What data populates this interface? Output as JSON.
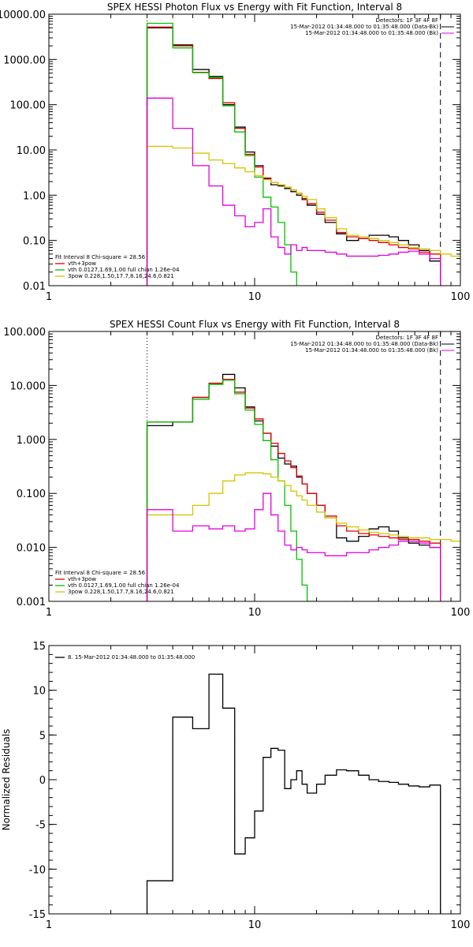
{
  "chart_data": [
    {
      "type": "line",
      "step": true,
      "title": "SPEX HESSI Photon Flux vs Energy with Fit Function, Interval 8",
      "xscale": "log",
      "yscale": "log",
      "xlim": [
        1,
        100
      ],
      "ylim": [
        0.01,
        10000
      ],
      "xticks": [
        {
          "v": 1,
          "label": "1"
        },
        {
          "v": 10,
          "label": "10"
        },
        {
          "v": 100,
          "label": "100"
        }
      ],
      "yticks": [
        {
          "v": 0.01,
          "label": "0.01"
        },
        {
          "v": 0.1,
          "label": "0.10"
        },
        {
          "v": 1,
          "label": "1.00"
        },
        {
          "v": 10,
          "label": "10.00"
        },
        {
          "v": 100,
          "label": "100.00"
        },
        {
          "v": 1000,
          "label": "1000.00"
        },
        {
          "v": 10000,
          "label": "10000.00"
        }
      ],
      "vlines": [
        {
          "x": 3,
          "style": "dotted"
        },
        {
          "x": 80,
          "style": "dashed"
        }
      ],
      "legend_right": [
        "Detectors: 1F 3F 4F 8F",
        "15-Mar-2012 01:34:48.000 to 01:35:48.000 (Data-Bk)",
        "15-Mar-2012 01:34:48.000 to 01:35:48.000 (Bk)"
      ],
      "legend_left": [
        "Fit Interval 8   Chi-square = 28.56",
        "vth+3pow",
        "vth 0.0127,1.69,1.00  full chian 1.26e-04",
        "3pow 0.228,1.50,17.7,8.16,24.6,0.821"
      ],
      "series": [
        {
          "key": "data",
          "color": "#000000",
          "edges": [
            3,
            4,
            5,
            6,
            7,
            8,
            9,
            10,
            11,
            12,
            13,
            14,
            15,
            16,
            17,
            18,
            20,
            22,
            25,
            28,
            32,
            36,
            40,
            45,
            50,
            56,
            63,
            71,
            80
          ],
          "values": [
            5000,
            2100,
            600,
            420,
            100,
            32,
            9,
            4.5,
            2.3,
            1.7,
            1.6,
            1.4,
            1.2,
            1.0,
            0.8,
            0.6,
            0.38,
            0.25,
            0.14,
            0.1,
            0.11,
            0.13,
            0.13,
            0.12,
            0.1,
            0.08,
            0.06,
            0.035
          ]
        },
        {
          "key": "fit",
          "color": "#e00000",
          "edges": [
            3,
            4,
            5,
            6,
            7,
            8,
            9,
            10,
            11,
            12,
            13,
            14,
            15,
            16,
            17,
            18,
            20,
            22,
            25,
            28,
            32,
            36,
            40,
            45,
            50,
            56,
            63,
            71,
            80
          ],
          "values": [
            5200,
            2000,
            520,
            380,
            110,
            30,
            8,
            4.2,
            2.4,
            1.9,
            1.7,
            1.5,
            1.3,
            1.1,
            0.85,
            0.65,
            0.42,
            0.28,
            0.15,
            0.12,
            0.11,
            0.1,
            0.09,
            0.08,
            0.07,
            0.065,
            0.055,
            0.05
          ]
        },
        {
          "key": "vth",
          "color": "#00c000",
          "edges": [
            3,
            4,
            5,
            6,
            7,
            8,
            9,
            10,
            11,
            12,
            13,
            14,
            15,
            16
          ],
          "values": [
            6300,
            1800,
            510,
            400,
            95,
            25,
            7.5,
            2.5,
            0.9,
            0.55,
            0.25,
            0.08,
            0.02
          ]
        },
        {
          "key": "pow",
          "color": "#d4c400",
          "edges": [
            3,
            4,
            5,
            6,
            7,
            8,
            9,
            10,
            11,
            12,
            13,
            14,
            15,
            16,
            17,
            18,
            20,
            22,
            25,
            28,
            32,
            36,
            40,
            45,
            50,
            56,
            63,
            71,
            80,
            90,
            100
          ],
          "values": [
            12,
            11,
            8.5,
            6,
            5,
            4,
            3.3,
            2.7,
            2.2,
            1.9,
            1.7,
            1.5,
            1.3,
            1.1,
            0.95,
            0.8,
            0.5,
            0.32,
            0.18,
            0.13,
            0.12,
            0.11,
            0.1,
            0.09,
            0.08,
            0.07,
            0.065,
            0.06,
            0.05,
            0.045
          ]
        },
        {
          "key": "bk",
          "color": "#e000e0",
          "edges": [
            3,
            4,
            5,
            6,
            7,
            8,
            9,
            10,
            11,
            12,
            13,
            14,
            15,
            16,
            17,
            18,
            20,
            22,
            25,
            28,
            32,
            36,
            40,
            45,
            50,
            56,
            63,
            71,
            80
          ],
          "values": [
            140,
            30,
            4.5,
            1.6,
            0.6,
            0.35,
            0.2,
            0.25,
            0.5,
            0.12,
            0.07,
            0.05,
            0.08,
            0.06,
            0.07,
            0.06,
            0.06,
            0.055,
            0.05,
            0.045,
            0.045,
            0.045,
            0.047,
            0.05,
            0.055,
            0.058,
            0.05,
            0.04
          ]
        }
      ]
    },
    {
      "type": "line",
      "step": true,
      "title": "SPEX HESSI Count Flux vs Energy with Fit Function, Interval 8",
      "xscale": "log",
      "yscale": "log",
      "xlim": [
        1,
        100
      ],
      "ylim": [
        0.001,
        100
      ],
      "xticks": [
        {
          "v": 1,
          "label": "1"
        },
        {
          "v": 10,
          "label": "10"
        },
        {
          "v": 100,
          "label": "100"
        }
      ],
      "yticks": [
        {
          "v": 0.001,
          "label": "0.001"
        },
        {
          "v": 0.01,
          "label": "0.010"
        },
        {
          "v": 0.1,
          "label": "0.100"
        },
        {
          "v": 1,
          "label": "1.000"
        },
        {
          "v": 10,
          "label": "10.000"
        },
        {
          "v": 100,
          "label": "100.000"
        }
      ],
      "vlines": [
        {
          "x": 3,
          "style": "dotted"
        },
        {
          "x": 80,
          "style": "dashed"
        }
      ],
      "legend_right": [
        "Detectors: 1F 3F 4F 8F",
        "15-Mar-2012 01:34:48.000 to 01:35:48.000 (Data-Bk)",
        "15-Mar-2012 01:34:48.000 to 01:35:48.000 (Bk)"
      ],
      "legend_left": [
        "Fit Interval 8   Chi-square = 28.56",
        "vth+3pow",
        "vth 0.0127,1.69,1.00  full chian 1.26e-04",
        "3pow 0.228,1.50,17.7,8.16,24.6,0.821"
      ],
      "series": [
        {
          "key": "data",
          "color": "#000000",
          "edges": [
            3,
            4,
            5,
            6,
            7,
            8,
            9,
            10,
            11,
            12,
            13,
            14,
            15,
            16,
            17,
            18,
            20,
            22,
            25,
            28,
            32,
            36,
            40,
            45,
            50,
            56,
            63,
            71,
            80
          ],
          "values": [
            1.8,
            2.1,
            6,
            10.5,
            16,
            9,
            4,
            2.2,
            1.3,
            0.75,
            0.45,
            0.35,
            0.32,
            0.2,
            0.15,
            0.1,
            0.06,
            0.035,
            0.015,
            0.013,
            0.016,
            0.022,
            0.024,
            0.02,
            0.015,
            0.012,
            0.011,
            0.01
          ]
        },
        {
          "key": "fit",
          "color": "#e00000",
          "edges": [
            3,
            4,
            5,
            6,
            7,
            8,
            9,
            10,
            11,
            12,
            13,
            14,
            15,
            16,
            17,
            18,
            20,
            22,
            25,
            28,
            32,
            36,
            40,
            45,
            50,
            56,
            63,
            71,
            80
          ],
          "values": [
            2.1,
            2.1,
            6,
            11,
            13,
            7.5,
            3.8,
            2.4,
            1.3,
            0.85,
            0.55,
            0.4,
            0.3,
            0.21,
            0.15,
            0.1,
            0.06,
            0.038,
            0.025,
            0.02,
            0.018,
            0.017,
            0.016,
            0.015,
            0.014,
            0.014,
            0.013,
            0.012
          ]
        },
        {
          "key": "vth",
          "color": "#00c000",
          "edges": [
            3,
            4,
            5,
            6,
            7,
            8,
            9,
            10,
            11,
            12,
            13,
            14,
            15,
            16,
            17,
            18,
            20
          ],
          "values": [
            2.1,
            2.1,
            5.5,
            10.5,
            12.5,
            7,
            3.5,
            1.9,
            0.95,
            0.42,
            0.17,
            0.06,
            0.02,
            0.006,
            0.002,
            0.001
          ]
        },
        {
          "key": "pow",
          "color": "#d4c400",
          "edges": [
            3,
            4,
            5,
            6,
            7,
            8,
            9,
            10,
            11,
            12,
            13,
            14,
            15,
            16,
            17,
            18,
            20,
            22,
            25,
            28,
            32,
            36,
            40,
            45,
            50,
            56,
            63,
            71,
            80,
            90,
            100
          ],
          "values": [
            0.04,
            0.04,
            0.06,
            0.1,
            0.17,
            0.22,
            0.24,
            0.24,
            0.23,
            0.2,
            0.17,
            0.14,
            0.11,
            0.09,
            0.075,
            0.06,
            0.045,
            0.035,
            0.028,
            0.024,
            0.021,
            0.019,
            0.018,
            0.017,
            0.016,
            0.015,
            0.015,
            0.014,
            0.014,
            0.013
          ]
        },
        {
          "key": "bk",
          "color": "#e000e0",
          "edges": [
            3,
            4,
            5,
            6,
            7,
            8,
            9,
            10,
            11,
            12,
            13,
            14,
            15,
            16,
            17,
            18,
            20,
            22,
            25,
            28,
            32,
            36,
            40,
            45,
            50,
            56,
            63,
            71,
            80
          ],
          "values": [
            0.05,
            0.02,
            0.025,
            0.022,
            0.025,
            0.02,
            0.022,
            0.05,
            0.1,
            0.04,
            0.02,
            0.011,
            0.009,
            0.01,
            0.009,
            0.008,
            0.008,
            0.007,
            0.007,
            0.008,
            0.008,
            0.009,
            0.01,
            0.011,
            0.013,
            0.013,
            0.012,
            0.01
          ]
        }
      ]
    },
    {
      "type": "line",
      "step": true,
      "title": "",
      "ylabel": "Normalized Residuals",
      "xscale": "log",
      "yscale": "linear",
      "xlim": [
        1,
        100
      ],
      "ylim": [
        -15,
        15
      ],
      "xticks": [
        {
          "v": 1,
          "label": "1"
        },
        {
          "v": 10,
          "label": "10"
        },
        {
          "v": 100,
          "label": "100"
        }
      ],
      "yticks": [
        {
          "v": -15,
          "label": "-15"
        },
        {
          "v": -10,
          "label": "-10"
        },
        {
          "v": -5,
          "label": "-5"
        },
        {
          "v": 0,
          "label": "0"
        },
        {
          "v": 5,
          "label": "5"
        },
        {
          "v": 10,
          "label": "10"
        },
        {
          "v": 15,
          "label": "15"
        }
      ],
      "vlines": [],
      "legend_right": [],
      "legend_left": [
        "8. 15-Mar-2012 01:34:48.000 to 01:35:48.000"
      ],
      "series": [
        {
          "key": "resid",
          "color": "#000000",
          "edges": [
            3,
            4,
            5,
            6,
            7,
            8,
            9,
            10,
            11,
            12,
            13,
            14,
            15,
            16,
            17,
            18,
            20,
            22,
            25,
            28,
            32,
            36,
            40,
            45,
            50,
            56,
            63,
            71,
            80
          ],
          "values": [
            -11.3,
            7,
            5.7,
            11.8,
            8,
            -8.3,
            -6.5,
            -3.5,
            2.5,
            3.5,
            3.3,
            -1,
            0,
            1,
            -0.5,
            -1.5,
            -0.5,
            0.5,
            1.1,
            1,
            0.5,
            0,
            -0.2,
            -0.3,
            -0.5,
            -0.7,
            -0.8,
            -0.6
          ]
        }
      ]
    }
  ]
}
